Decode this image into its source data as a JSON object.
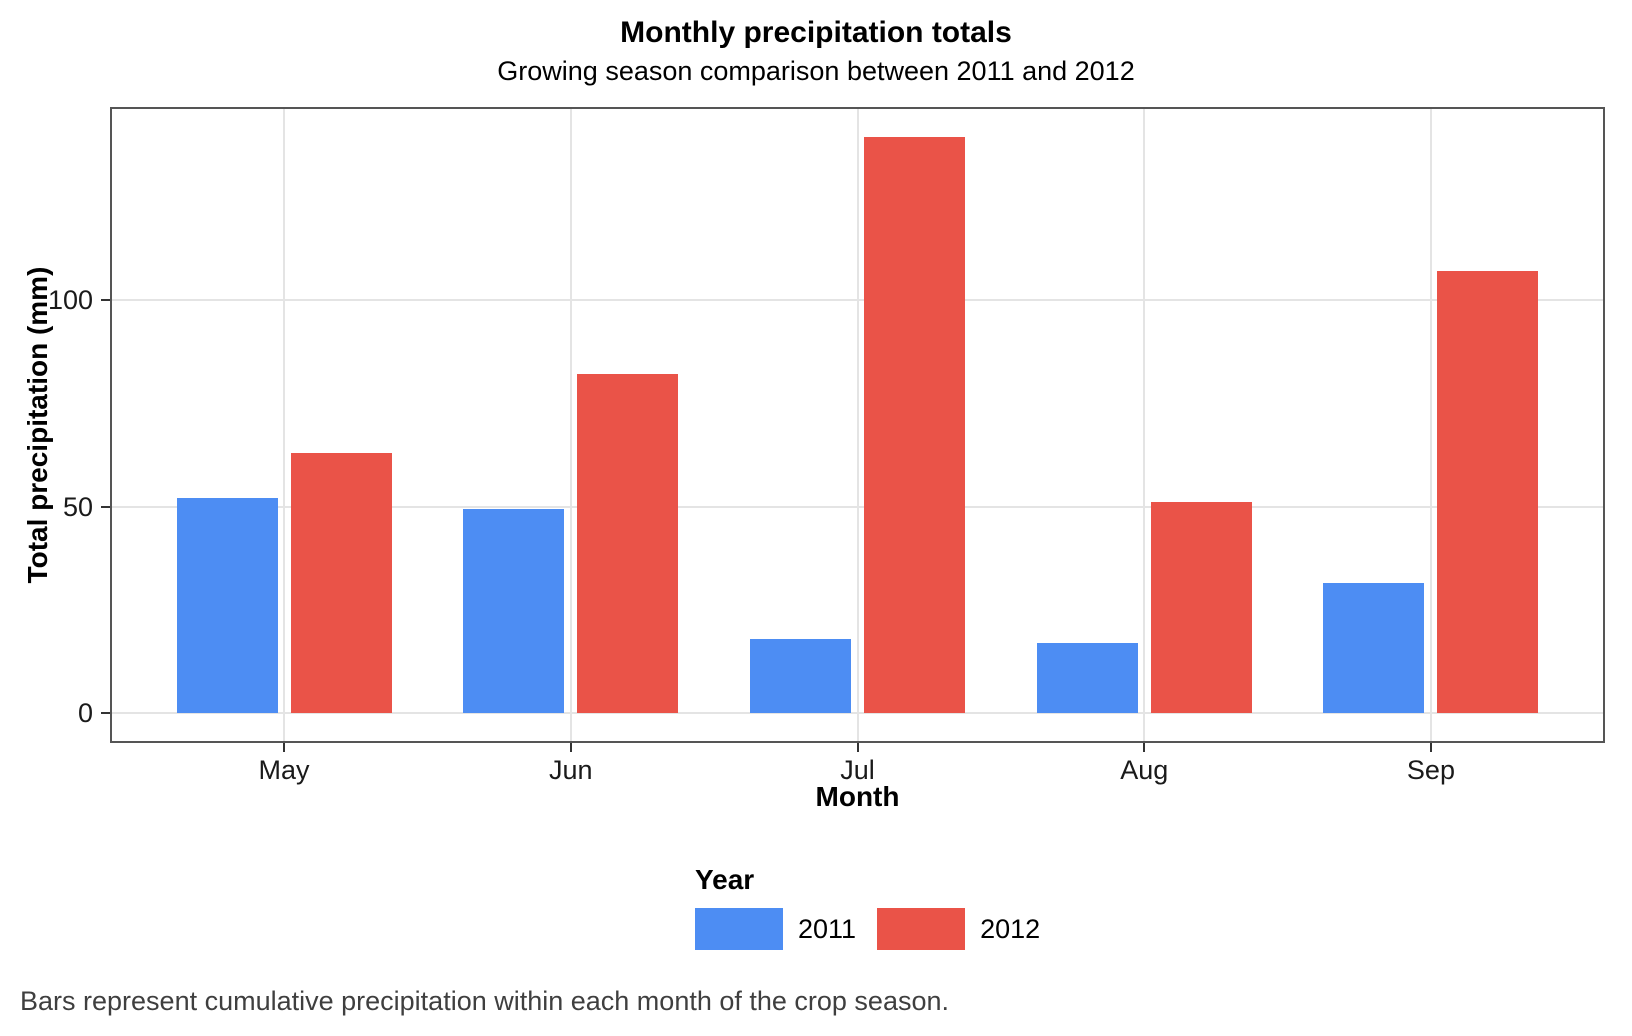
{
  "title": "Monthly precipitation totals",
  "subtitle": "Growing season comparison between 2011 and 2012",
  "caption": "Bars represent cumulative precipitation within each month of the crop season.",
  "colors": {
    "series_2011": "#4D8DF3",
    "series_2012": "#EA5348",
    "gridline": "#E4E4E4",
    "panel_border": "#555555",
    "axis_tick": "#333333",
    "caption_text": "#3F3F3F"
  },
  "chart_data": {
    "type": "bar",
    "title": "Monthly precipitation totals",
    "subtitle": "Growing season comparison between 2011 and 2012",
    "categories": [
      "May",
      "Jun",
      "Jul",
      "Aug",
      "Sep"
    ],
    "series": [
      {
        "name": "2011",
        "color": "#4D8DF3",
        "values": [
          52,
          49.5,
          18,
          17,
          31.5
        ]
      },
      {
        "name": "2012",
        "color": "#EA5348",
        "values": [
          63,
          82,
          139.5,
          51,
          107
        ]
      }
    ],
    "xlabel": "Month",
    "ylabel": "Total precipitation (mm)",
    "yticks": [
      0,
      50,
      100
    ],
    "ylim": [
      -7.3,
      146.7
    ],
    "grid": "major horizontal lines at yticks, vertical line at each category center",
    "legend_title": "Year",
    "legend_position": "bottom-center",
    "bar_layout": "dodged pairs, 2011 left / 2012 right"
  },
  "legend": {
    "title": "Year",
    "items": [
      {
        "label": "2011",
        "color": "#4D8DF3"
      },
      {
        "label": "2012",
        "color": "#EA5348"
      }
    ]
  }
}
